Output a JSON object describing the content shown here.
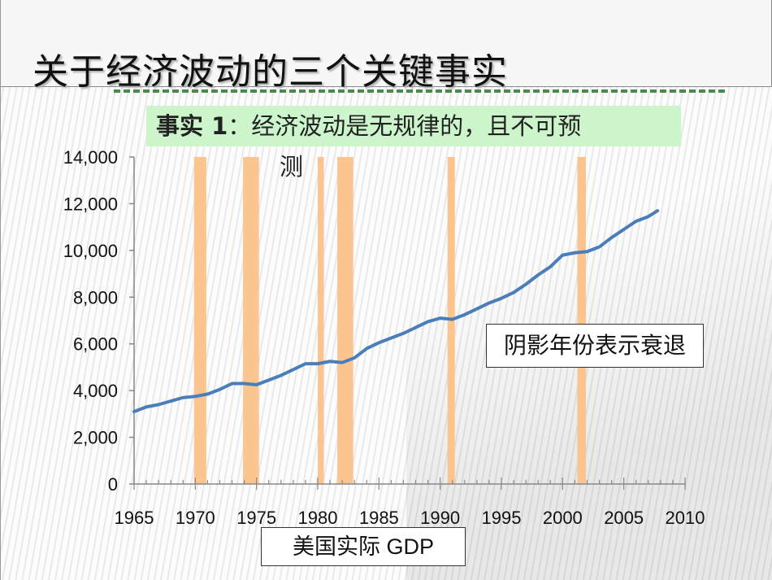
{
  "slide": {
    "title": "关于经济波动的三个关键事实",
    "fact_label": "事实 1",
    "fact_text": "：经济波动是无规律的，且不可预",
    "fact_text_cont": "测",
    "note": "阴影年份表示衰退"
  },
  "chart_data": {
    "type": "line",
    "title": "",
    "xlabel": "美国实际 GDP",
    "ylabel": "",
    "xlim": [
      1965,
      2010
    ],
    "ylim": [
      0,
      14000
    ],
    "xticks": [
      "1965",
      "1970",
      "1975",
      "1980",
      "1985",
      "1990",
      "1995",
      "2000",
      "2005",
      "2010"
    ],
    "yticks": [
      "0",
      "2,000",
      "4,000",
      "6,000",
      "8,000",
      "10,000",
      "12,000",
      "14,000"
    ],
    "series": [
      {
        "name": "美国实际 GDP",
        "color": "#4a7ebb",
        "x": [
          1965,
          1966,
          1967,
          1968,
          1969,
          1970,
          1971,
          1972,
          1973,
          1974,
          1975,
          1976,
          1977,
          1978,
          1979,
          1980,
          1981,
          1982,
          1983,
          1984,
          1985,
          1986,
          1987,
          1988,
          1989,
          1990,
          1991,
          1992,
          1993,
          1994,
          1995,
          1996,
          1997,
          1998,
          1999,
          2000,
          2001,
          2002,
          2003,
          2004,
          2005,
          2006,
          2007,
          2007.75
        ],
        "values": [
          3100,
          3300,
          3400,
          3550,
          3700,
          3750,
          3850,
          4050,
          4300,
          4300,
          4250,
          4450,
          4650,
          4900,
          5150,
          5150,
          5250,
          5200,
          5400,
          5800,
          6050,
          6250,
          6450,
          6700,
          6950,
          7100,
          7050,
          7250,
          7500,
          7750,
          7950,
          8200,
          8550,
          8950,
          9300,
          9800,
          9900,
          9950,
          10150,
          10550,
          10900,
          11250,
          11450,
          11700
        ]
      }
    ],
    "recessions": [
      [
        1969.9,
        1970.9
      ],
      [
        1973.9,
        1975.2
      ],
      [
        1980.0,
        1980.5
      ],
      [
        1981.6,
        1982.9
      ],
      [
        1990.6,
        1991.2
      ],
      [
        2001.2,
        2001.9
      ]
    ],
    "recession_color": "#fcc58f",
    "grid": false,
    "legend": "none"
  }
}
